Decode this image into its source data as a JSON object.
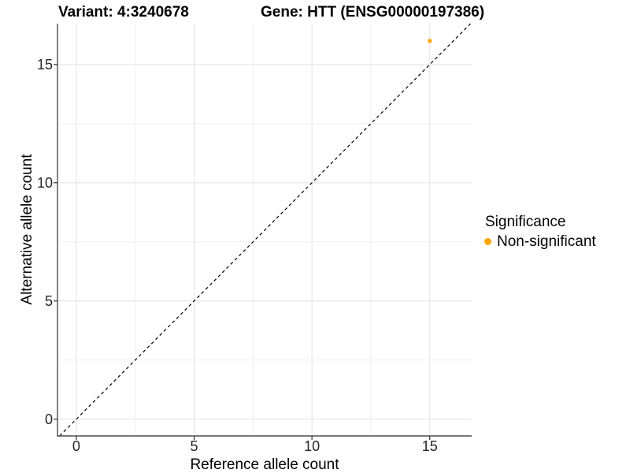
{
  "titles": {
    "variant": "Variant: 4:3240678",
    "gene": "Gene: HTT (ENSG00000197386)"
  },
  "axes": {
    "x_label": "Reference allele count",
    "y_label": "Alternative allele count"
  },
  "legend": {
    "title": "Significance",
    "items": [
      {
        "label": "Non-significant",
        "color": "#FFA500"
      }
    ]
  },
  "colors": {
    "background": "#FFFFFF",
    "grid_major": "#E3E3E3",
    "grid_minor": "#EFEFEF",
    "axis_line": "#4D4D4D",
    "tick_mark": "#333333",
    "reference_line": "#000000",
    "point": "#FFA500"
  },
  "chart_data": {
    "type": "scatter",
    "title": "Variant: 4:3240678   Gene: HTT (ENSG00000197386)",
    "xlabel": "Reference allele count",
    "ylabel": "Alternative allele count",
    "xlim": [
      -0.8,
      16.78
    ],
    "ylim": [
      -0.71,
      16.73
    ],
    "x_ticks": [
      0,
      5,
      10,
      15
    ],
    "y_ticks": [
      0,
      5,
      10,
      15
    ],
    "x_minor_ticks": [
      2.5,
      7.5,
      12.5
    ],
    "y_minor_ticks": [
      2.5,
      7.5,
      12.5
    ],
    "grid": "major+minor",
    "legend_position": "right",
    "series": [
      {
        "name": "Non-significant",
        "color": "#FFA500",
        "points": [
          {
            "x": 15,
            "y": 16
          }
        ]
      }
    ],
    "reference_line": {
      "kind": "identity y=x",
      "style": "dashed",
      "from": [
        -0.71,
        -0.71
      ],
      "to": [
        16.73,
        16.73
      ]
    }
  }
}
